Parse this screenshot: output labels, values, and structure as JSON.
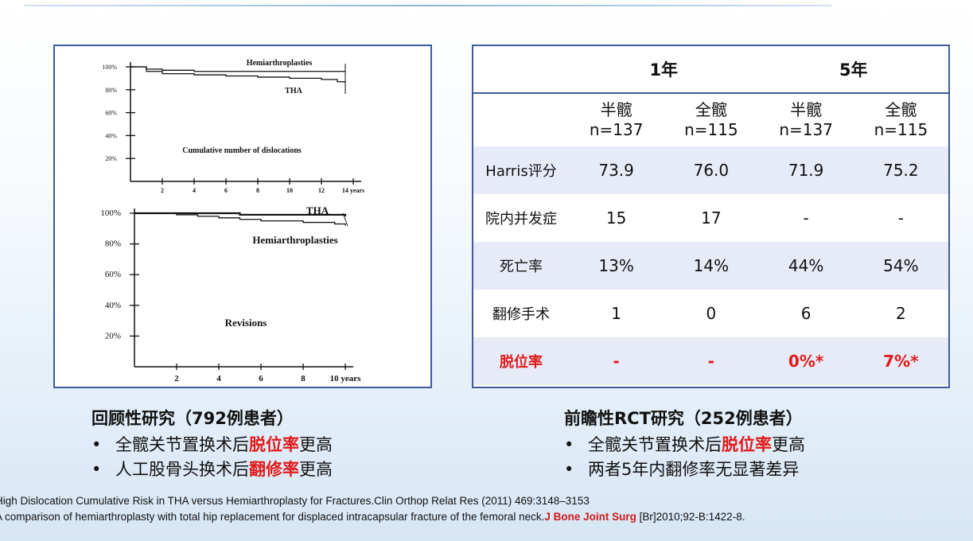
{
  "chart_data": [
    {
      "type": "line",
      "title": "Cumulative number of dislocations",
      "yticks": [
        "100%",
        "80%",
        "60%",
        "40%",
        "20%"
      ],
      "xticks": [
        "2",
        "4",
        "6",
        "8",
        "10",
        "12",
        "14 years"
      ],
      "xlim": [
        0,
        14
      ],
      "ylim": [
        0,
        100
      ],
      "series": [
        {
          "name": "Hemiarthroplasties",
          "x": [
            0,
            1,
            2,
            4,
            6,
            8,
            10,
            12,
            13.5
          ],
          "y": [
            100,
            98,
            97,
            96,
            96,
            96,
            96,
            96,
            96
          ]
        },
        {
          "name": "THA",
          "x": [
            0,
            1,
            2,
            4,
            6,
            8,
            10,
            12,
            13,
            13.5
          ],
          "y": [
            100,
            96,
            94,
            93,
            92,
            91,
            90,
            89,
            87,
            86
          ]
        }
      ]
    },
    {
      "type": "line",
      "title": "Revisions",
      "yticks": [
        "100%",
        "80%",
        "60%",
        "40%",
        "20%"
      ],
      "xticks": [
        "2",
        "4",
        "6",
        "8",
        "10 years"
      ],
      "xlim": [
        0,
        10
      ],
      "ylim": [
        0,
        100
      ],
      "series": [
        {
          "name": "THA",
          "x": [
            0,
            2,
            4,
            5,
            8,
            9.5,
            10
          ],
          "y": [
            100,
            100,
            100,
            99,
            99,
            99,
            98
          ]
        },
        {
          "name": "Hemiarthroplasties",
          "x": [
            0,
            2,
            3,
            4,
            5,
            6,
            8,
            9.5,
            10
          ],
          "y": [
            100,
            99,
            98,
            97,
            96,
            95,
            94,
            93,
            92
          ]
        }
      ]
    }
  ],
  "table": {
    "years": [
      "1年",
      "5年"
    ],
    "sub": [
      {
        "type": "半髋",
        "n": "n=137"
      },
      {
        "type": "全髋",
        "n": "n=115"
      },
      {
        "type": "半髋",
        "n": "n=137"
      },
      {
        "type": "全髋",
        "n": "n=115"
      }
    ],
    "rows": [
      {
        "label": "Harris评分",
        "values": [
          "73.9",
          "76.0",
          "71.9",
          "75.2"
        ]
      },
      {
        "label": "院内并发症",
        "values": [
          "15",
          "17",
          "-",
          "-"
        ]
      },
      {
        "label": "死亡率",
        "values": [
          "13%",
          "14%",
          "44%",
          "54%"
        ]
      },
      {
        "label": "翻修手术",
        "values": [
          "1",
          "0",
          "6",
          "2"
        ]
      },
      {
        "label": "脱位率",
        "values": [
          "-",
          "-",
          "0%*",
          "7%*"
        ]
      }
    ]
  },
  "left_caption": {
    "title": "回顾性研究（792例患者）",
    "bullet1_pre": "全髋关节置换术后",
    "bullet1_red": "脱位率",
    "bullet1_post": "更高",
    "bullet2_pre": "人工股骨头换术后",
    "bullet2_red": "翻修率",
    "bullet2_post": "更高"
  },
  "right_caption": {
    "title": "前瞻性RCT研究（252例患者）",
    "bullet1_pre": "全髋关节置换术后",
    "bullet1_red": "脱位率",
    "bullet1_post": "更高",
    "bullet2": "两者5年内翻修率无显著差异"
  },
  "bullet_char": "•",
  "refs": {
    "line1": "High Dislocation Cumulative Risk in THA versus Hemiarthroplasty for Fractures.Clin Orthop Relat Res (2011) 469:3148–3153",
    "line2_pre": "A comparison of hemiarthroplasty with total hip replacement for displaced intracapsular fracture of the femoral neck.",
    "line2_journal": "J Bone Joint Surg",
    "line2_post": " [Br]2010;92-B:1422-8."
  },
  "colors": {
    "accent_red": "#e11b1b",
    "border_blue": "#3f5b9c",
    "stripe": "#e6ebf7"
  }
}
